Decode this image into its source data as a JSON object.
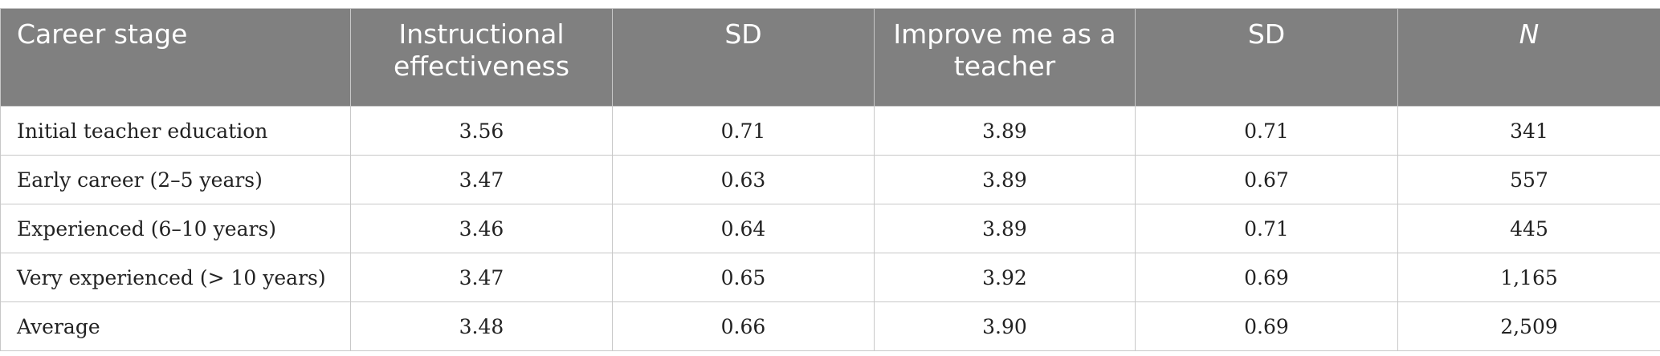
{
  "table": {
    "header": [
      "Career stage",
      "Instructional effectiveness",
      "SD",
      "Improve me as a teacher",
      "SD",
      "N"
    ],
    "rows": [
      [
        "Initial teacher education",
        "3.56",
        "0.71",
        "3.89",
        "0.71",
        "341"
      ],
      [
        "Early career (2–5 years)",
        "3.47",
        "0.63",
        "3.89",
        "0.67",
        "557"
      ],
      [
        "Experienced (6–10 years)",
        "3.46",
        "0.64",
        "3.89",
        "0.71",
        "445"
      ],
      [
        "Very experienced (> 10 years)",
        "3.47",
        "0.65",
        "3.92",
        "0.69",
        "1,165"
      ],
      [
        "Average",
        "3.48",
        "0.66",
        "3.90",
        "0.69",
        "2,509"
      ]
    ]
  }
}
